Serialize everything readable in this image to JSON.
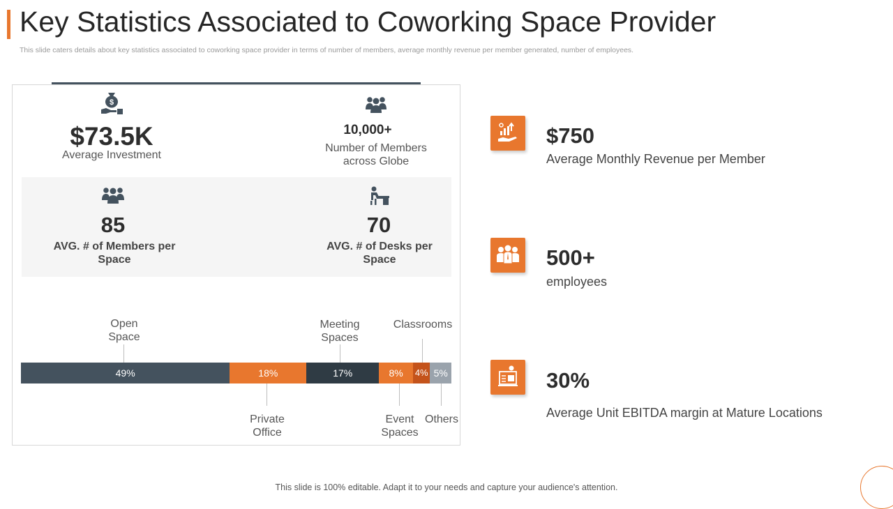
{
  "header": {
    "title": "Key Statistics Associated to Coworking Space Provider",
    "subtitle": "This slide caters details about key statistics associated to coworking space provider in terms of number of members, average monthly revenue per member generated, number of employees."
  },
  "left_panel": {
    "investment": {
      "value": "$73.5K",
      "label": "Average Investment",
      "icon": "money-bag-icon"
    },
    "members": {
      "value": "10,000+",
      "label_line1": "Number of Members",
      "label_line2": "across Globe",
      "icon": "team-icon"
    },
    "avg_members": {
      "value": "85",
      "label_line1": "AVG. # of Members per",
      "label_line2": "Space",
      "icon": "group-icon"
    },
    "avg_desks": {
      "value": "70",
      "label_line1": "AVG. # of Desks per",
      "label_line2": "Space",
      "icon": "desk-icon"
    }
  },
  "chart_data": {
    "type": "bar",
    "orientation": "horizontal-stacked",
    "categories": [
      "Open Space",
      "Private Office",
      "Meeting Spaces",
      "Event Spaces",
      "Classrooms",
      "Others"
    ],
    "values": [
      49,
      18,
      17,
      8,
      4,
      5
    ],
    "value_labels": [
      "49%",
      "18%",
      "17%",
      "8%",
      "4%",
      "5%"
    ],
    "colors": [
      "#44525e",
      "#e8772e",
      "#2f3b44",
      "#e8772e",
      "#c4531b",
      "#9aa3ac"
    ],
    "labels_above": {
      "open_space": [
        "Open",
        "Space"
      ],
      "meeting_spaces": [
        "Meeting",
        "Spaces"
      ],
      "classrooms": [
        "Classrooms"
      ]
    },
    "labels_below": {
      "private_office": [
        "Private",
        "Office"
      ],
      "event_spaces": [
        "Event",
        "Spaces"
      ],
      "others": [
        "Others"
      ]
    }
  },
  "stats": [
    {
      "value": "$750",
      "label": "Average Monthly Revenue per Member",
      "icon": "revenue-hand-icon"
    },
    {
      "value": "500+",
      "label": "employees",
      "icon": "employees-icon"
    },
    {
      "value": "30%",
      "label": "Average Unit EBITDA margin at Mature Locations",
      "icon": "report-icon"
    }
  ],
  "footer": {
    "text": "This slide is 100% editable. Adapt it to your needs and capture your audience's attention."
  },
  "colors": {
    "accent": "#e8772e",
    "dark": "#44525e"
  }
}
